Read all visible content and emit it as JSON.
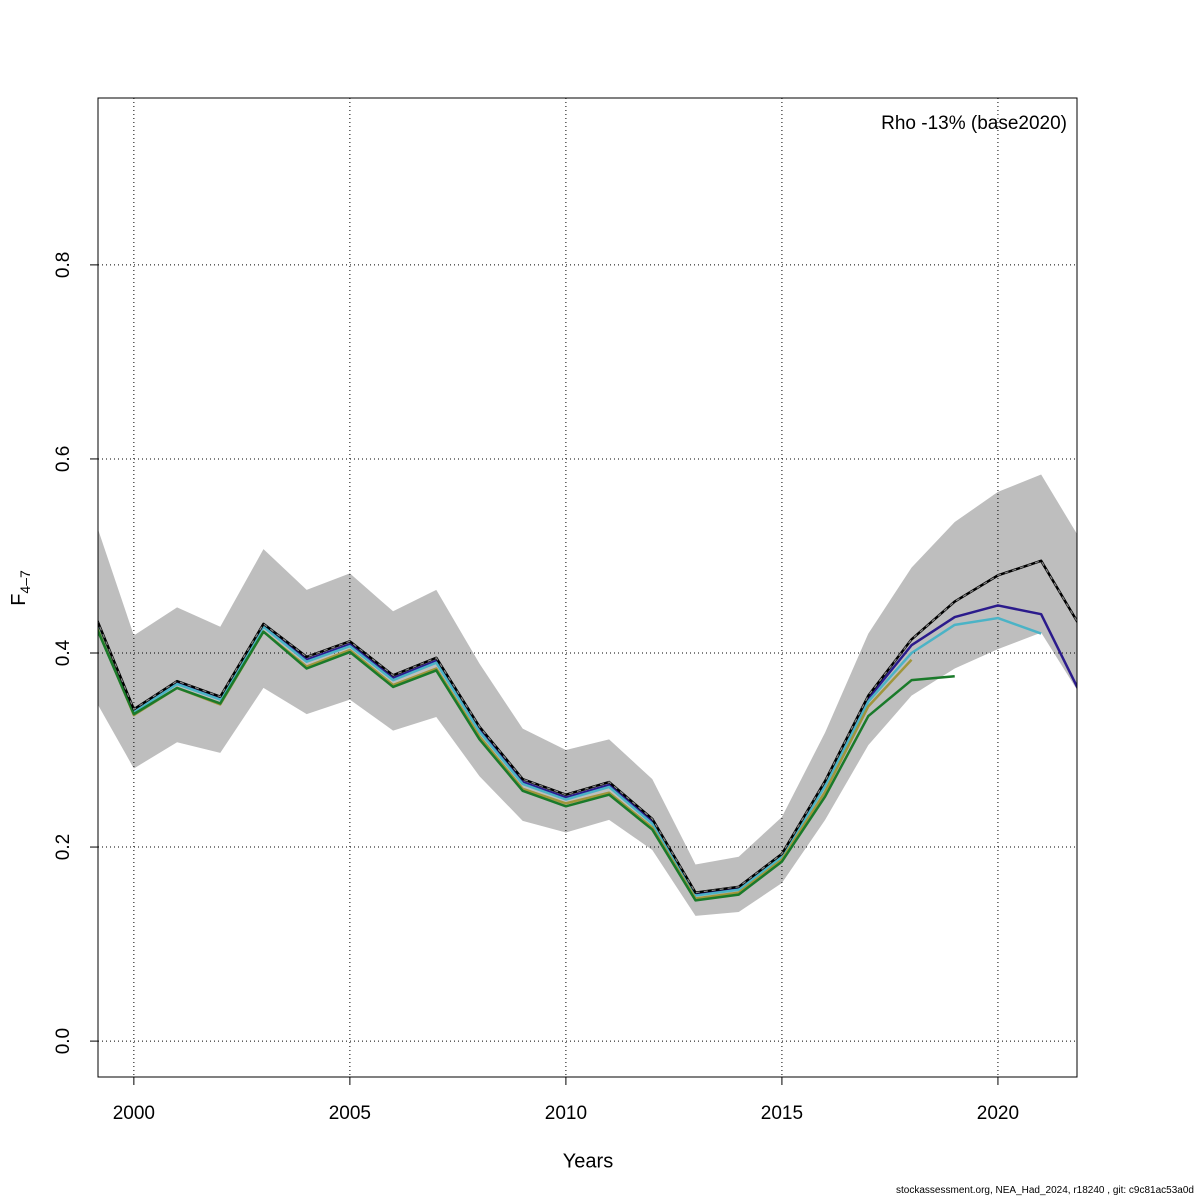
{
  "chart_data": {
    "type": "line",
    "annotation": "Rho -13% (base2020)",
    "xlabel": "Years",
    "ylabel": "F",
    "ylabel_sub": "4–7",
    "footer": "stockassessment.org, NEA_Had_2024, r18240 , git: c9c81ac53a0d",
    "x": [
      1999,
      2000,
      2001,
      2002,
      2003,
      2004,
      2005,
      2006,
      2007,
      2008,
      2009,
      2010,
      2011,
      2012,
      2013,
      2014,
      2015,
      2016,
      2017,
      2018,
      2019,
      2020,
      2021,
      2022
    ],
    "xlim": [
      1999.17,
      2021.83
    ],
    "ylim": [
      -0.037,
      0.972
    ],
    "xticks": [
      2000,
      2005,
      2010,
      2015,
      2020
    ],
    "yticks": [
      {
        "value": 0,
        "label": "0.0"
      },
      0.2,
      0.4,
      0.6,
      0.8
    ],
    "grid": true,
    "band": {
      "color": "#bebebe",
      "upper": [
        0.55,
        0.418,
        0.447,
        0.427,
        0.507,
        0.465,
        0.482,
        0.443,
        0.465,
        0.389,
        0.322,
        0.3,
        0.311,
        0.27,
        0.182,
        0.19,
        0.231,
        0.318,
        0.42,
        0.488,
        0.535,
        0.566,
        0.584,
        0.51
      ],
      "lower": [
        0.36,
        0.281,
        0.308,
        0.297,
        0.364,
        0.337,
        0.352,
        0.32,
        0.334,
        0.273,
        0.227,
        0.215,
        0.228,
        0.197,
        0.129,
        0.133,
        0.163,
        0.228,
        0.305,
        0.356,
        0.384,
        0.404,
        0.421,
        0.35
      ]
    },
    "series": [
      {
        "color": "#2b1b8c",
        "values": [
          0.448,
          0.34,
          0.369,
          0.353,
          0.428,
          0.393,
          0.409,
          0.374,
          0.392,
          0.321,
          0.267,
          0.251,
          0.264,
          0.226,
          0.151,
          0.157,
          0.191,
          0.265,
          0.353,
          0.408,
          0.437,
          0.449,
          0.44,
          0.35
        ]
      },
      {
        "color": "#4bb3c6",
        "values": [
          0.447,
          0.339,
          0.368,
          0.352,
          0.427,
          0.391,
          0.407,
          0.372,
          0.39,
          0.319,
          0.265,
          0.249,
          0.262,
          0.224,
          0.15,
          0.156,
          0.19,
          0.263,
          0.35,
          0.4,
          0.429,
          0.436,
          0.42,
          null
        ]
      },
      {
        "color": "#a0963c",
        "values": [
          0.442,
          0.336,
          0.364,
          0.347,
          0.422,
          0.386,
          0.403,
          0.367,
          0.384,
          0.314,
          0.26,
          0.245,
          0.256,
          0.22,
          0.147,
          0.153,
          0.187,
          0.257,
          0.345,
          0.393,
          null,
          null,
          null,
          null
        ]
      },
      {
        "color": "#1a7a2a",
        "values": [
          0.44,
          0.337,
          0.364,
          0.348,
          0.422,
          0.384,
          0.401,
          0.365,
          0.382,
          0.311,
          0.258,
          0.242,
          0.254,
          0.218,
          0.145,
          0.151,
          0.185,
          0.252,
          0.335,
          0.372,
          0.376,
          null,
          null,
          null
        ]
      },
      {
        "color": "#000000",
        "dashed": true,
        "values": [
          0.45,
          0.342,
          0.371,
          0.355,
          0.43,
          0.396,
          0.412,
          0.377,
          0.395,
          0.324,
          0.27,
          0.254,
          0.267,
          0.229,
          0.153,
          0.159,
          0.193,
          0.268,
          0.356,
          0.414,
          0.453,
          0.48,
          0.495,
          0.42
        ]
      }
    ]
  }
}
